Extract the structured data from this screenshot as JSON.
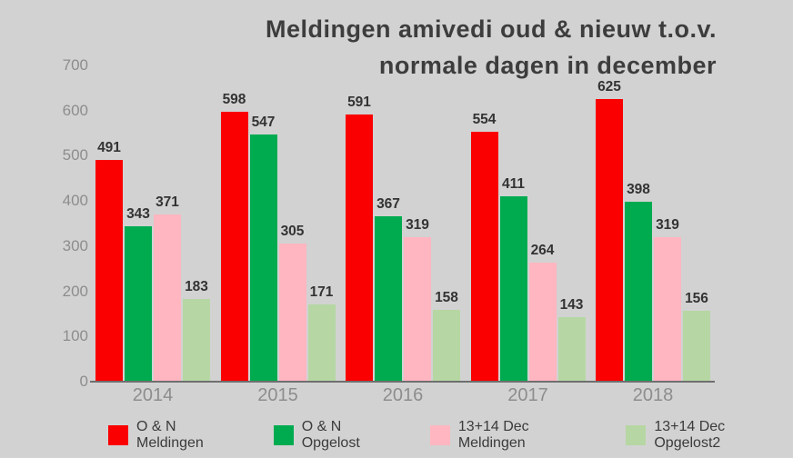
{
  "colors": {
    "background": "#d2d2d2",
    "title_text": "#3d3d3d",
    "axis_text": "#8d8d8d",
    "value_label_text": "#333333",
    "baseline": "#6f6f6f"
  },
  "title": {
    "line1": "Meldingen amivedi oud & nieuw t.o.v.",
    "line2": "normale dagen in december"
  },
  "chart_data": {
    "type": "bar",
    "title": "Meldingen amivedi oud & nieuw t.o.v. normale dagen in december",
    "categories": [
      "2014",
      "2015",
      "2016",
      "2017",
      "2018"
    ],
    "series": [
      {
        "name": "O & N Meldingen",
        "color": "#fa0000",
        "values": [
          491,
          598,
          591,
          554,
          625
        ]
      },
      {
        "name": "O & N Opgelost",
        "color": "#00ab50",
        "values": [
          343,
          547,
          367,
          411,
          398
        ]
      },
      {
        "name": "13+14 Dec Meldingen",
        "color": "#ffb6c0",
        "values": [
          371,
          305,
          319,
          264,
          319
        ]
      },
      {
        "name": "13+14 Dec Opgelost2",
        "color": "#b6d7a3",
        "values": [
          183,
          171,
          158,
          143,
          156
        ]
      }
    ],
    "xlabel": "",
    "ylabel": "",
    "ylim": [
      0,
      700
    ],
    "yticks": [
      0,
      100,
      200,
      300,
      400,
      500,
      600,
      700
    ],
    "grid": false,
    "legend_position": "bottom",
    "value_labels": true
  }
}
